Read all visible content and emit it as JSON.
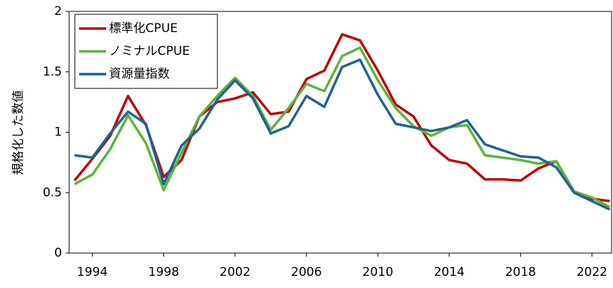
{
  "chart_data": {
    "type": "line",
    "ylabel": "規格化した数値",
    "x": [
      1993,
      1994,
      1995,
      1996,
      1997,
      1998,
      1999,
      2000,
      2001,
      2002,
      2003,
      2004,
      2005,
      2006,
      2007,
      2008,
      2009,
      2010,
      2011,
      2012,
      2013,
      2014,
      2015,
      2016,
      2017,
      2018,
      2019,
      2020,
      2021,
      2022,
      2023
    ],
    "series": [
      {
        "name": "標準化CPUE",
        "color": "#c00000",
        "values": [
          0.6,
          0.78,
          0.97,
          1.3,
          1.06,
          0.63,
          0.77,
          1.13,
          1.25,
          1.28,
          1.33,
          1.15,
          1.17,
          1.44,
          1.51,
          1.81,
          1.76,
          1.51,
          1.23,
          1.13,
          0.89,
          0.77,
          0.74,
          0.61,
          0.61,
          0.6,
          0.7,
          0.76,
          0.51,
          0.45,
          0.43
        ]
      },
      {
        "name": "ノミナルCPUE",
        "color": "#5db33c",
        "values": [
          0.57,
          0.65,
          0.86,
          1.14,
          0.91,
          0.52,
          0.83,
          1.13,
          1.3,
          1.45,
          1.3,
          1.02,
          1.2,
          1.4,
          1.34,
          1.63,
          1.7,
          1.43,
          1.2,
          1.05,
          0.97,
          1.04,
          1.06,
          0.81,
          0.79,
          0.77,
          0.74,
          0.76,
          0.51,
          0.46,
          0.38
        ]
      },
      {
        "name": "資源量指数",
        "color": "#1f6391",
        "values": [
          0.81,
          0.79,
          0.99,
          1.17,
          1.07,
          0.57,
          0.89,
          1.03,
          1.27,
          1.43,
          1.28,
          0.99,
          1.05,
          1.3,
          1.21,
          1.54,
          1.6,
          1.31,
          1.07,
          1.04,
          1.01,
          1.04,
          1.1,
          0.9,
          0.85,
          0.8,
          0.79,
          0.71,
          0.5,
          0.43,
          0.36
        ]
      }
    ],
    "xlim": [
      1992.7,
      2023.1
    ],
    "xticks": [
      1994,
      1998,
      2002,
      2006,
      2010,
      2014,
      2018,
      2022
    ],
    "ylim": [
      0,
      2
    ],
    "yticks": [
      0,
      0.5,
      1,
      1.5,
      2
    ],
    "legend": "upper-left"
  }
}
